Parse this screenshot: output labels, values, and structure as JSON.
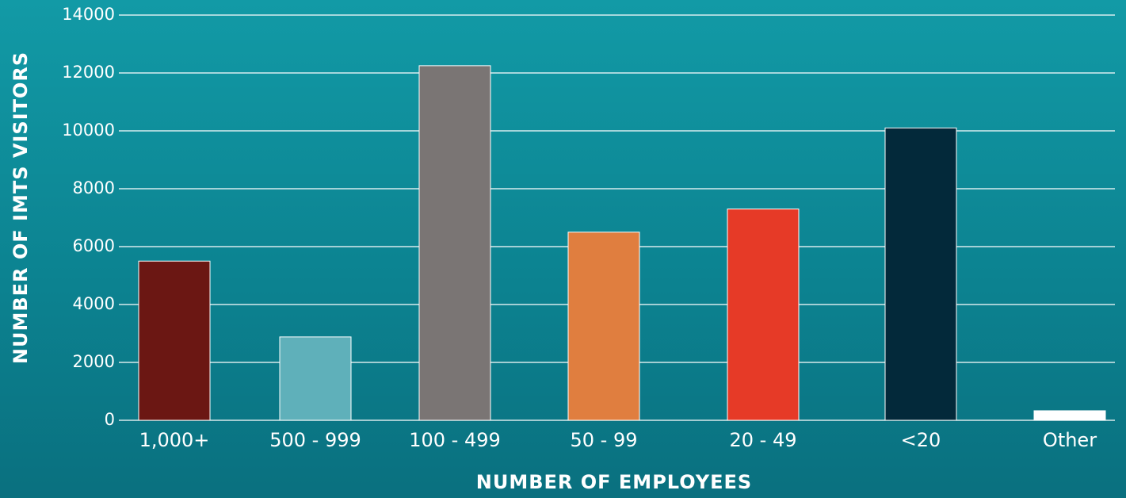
{
  "chart_data": {
    "type": "bar",
    "x_label": "NUMBER OF EMPLOYEES",
    "y_label": "NUMBER OF IMTS VISITORS",
    "categories": [
      "1,000+",
      "500 - 999",
      "100 - 499",
      "50 - 99",
      "20 - 49",
      "<20",
      "Other"
    ],
    "values": [
      5500,
      2880,
      12250,
      6500,
      7300,
      10100,
      330
    ],
    "colors": [
      "#6b1713",
      "#5fb0ba",
      "#7a7574",
      "#e07e3f",
      "#e63a27",
      "#03293a",
      "#ffffff"
    ],
    "ylim": [
      0,
      14000
    ],
    "yticks": [
      0,
      2000,
      4000,
      6000,
      8000,
      10000,
      12000,
      14000
    ],
    "grid": true
  }
}
